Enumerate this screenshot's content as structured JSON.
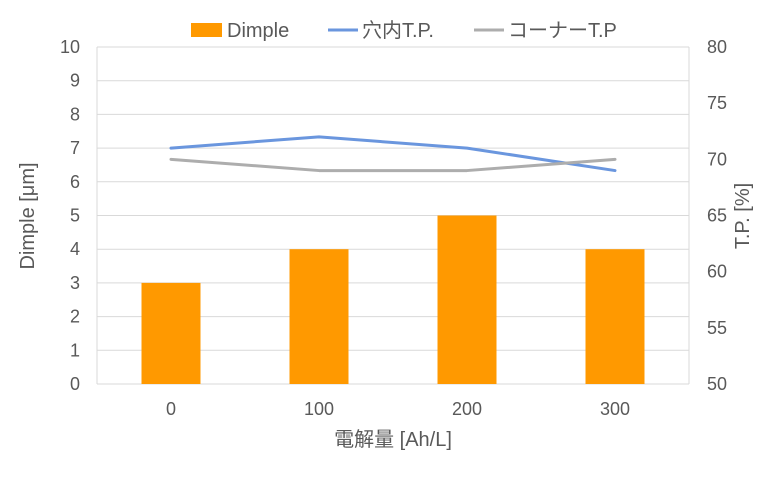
{
  "chart_data": {
    "type": "bar",
    "categories": [
      "0",
      "100",
      "200",
      "300"
    ],
    "xlabel": "電解量 [Ah/L]",
    "ylabel": "Dimple [μm]",
    "y2label": "T.P. [%]",
    "ylim": [
      0,
      10
    ],
    "y2lim": [
      50,
      80
    ],
    "yticks": [
      "0",
      "1",
      "2",
      "3",
      "4",
      "5",
      "6",
      "7",
      "8",
      "9",
      "10"
    ],
    "y2ticks": [
      "50",
      "55",
      "60",
      "65",
      "70",
      "75",
      "80"
    ],
    "grid": true,
    "legend_position": "top",
    "series": [
      {
        "name": "Dimple",
        "type": "bar",
        "axis": "left",
        "color": "#FF9900",
        "values": [
          3,
          4,
          5,
          4
        ]
      },
      {
        "name": "穴内T.P.",
        "type": "line",
        "axis": "right",
        "color": "#6A96DE",
        "values": [
          71,
          72,
          71,
          69
        ]
      },
      {
        "name": "コーナーT.P",
        "type": "line",
        "axis": "right",
        "color": "#ADADAD",
        "values": [
          70,
          69,
          69,
          70
        ]
      }
    ]
  }
}
